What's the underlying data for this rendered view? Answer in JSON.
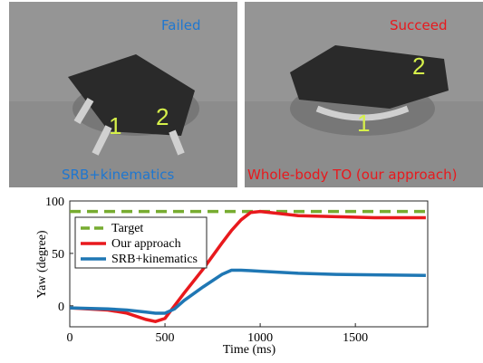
{
  "panels": [
    {
      "status": "Failed",
      "method": "SRB+kinematics",
      "markers": [
        "1",
        "2"
      ]
    },
    {
      "status": "Succeed",
      "method": "Whole-body TO (our approach)",
      "markers": [
        "1",
        "2"
      ]
    }
  ],
  "chart_data": {
    "type": "line",
    "xlabel": "Time (ms)",
    "ylabel": "Yaw (degree)",
    "x": [
      0,
      200,
      300,
      400,
      450,
      500,
      550,
      600,
      700,
      800,
      850,
      900,
      950,
      1000,
      1100,
      1200,
      1400,
      1600,
      1870
    ],
    "series": [
      {
        "name": "Target",
        "color": "#77ac30",
        "dashed": true,
        "values": [
          90,
          90,
          90,
          90,
          90,
          90,
          90,
          90,
          90,
          90,
          90,
          90,
          90,
          90,
          90,
          90,
          90,
          90,
          90
        ]
      },
      {
        "name": "Our approach",
        "color": "#e8191d",
        "values": [
          -2,
          -4,
          -7,
          -13,
          -15,
          -12,
          0,
          12,
          35,
          60,
          72,
          82,
          89,
          90,
          88,
          86,
          85,
          84,
          84
        ]
      },
      {
        "name": "SRB+kinematics",
        "color": "#1f77b4",
        "values": [
          -2,
          -3,
          -4,
          -6,
          -7,
          -7,
          -3,
          5,
          18,
          30,
          34,
          34,
          33.5,
          33,
          32,
          31,
          30,
          29.5,
          29
        ]
      }
    ],
    "xlim": [
      0,
      1880
    ],
    "ylim": [
      -20,
      100
    ],
    "xticks": [
      0,
      500,
      1000,
      1500
    ],
    "yticks": [
      0,
      50,
      100
    ],
    "legend": "upper-left"
  }
}
